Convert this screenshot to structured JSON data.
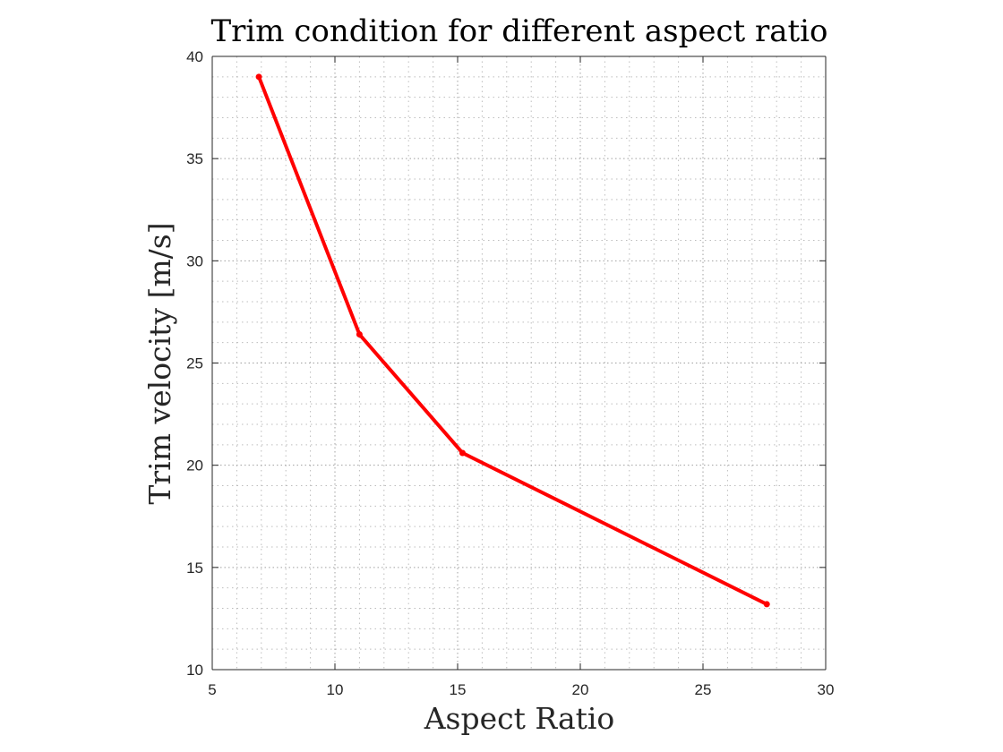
{
  "chart_data": {
    "type": "line",
    "title": "Trim condition for different aspect ratio",
    "xlabel": "Aspect Ratio",
    "ylabel": "Trim velocity [m/s]",
    "xlim": [
      5,
      30
    ],
    "ylim": [
      10,
      40
    ],
    "xticks": [
      5,
      10,
      15,
      20,
      25,
      30
    ],
    "yticks": [
      10,
      15,
      20,
      25,
      30,
      35,
      40
    ],
    "grid": "on (major and minor, dotted)",
    "color": "#ff0000",
    "series": [
      {
        "x": [
          6.9,
          11.0,
          15.2,
          27.6
        ],
        "y": [
          39.0,
          26.4,
          20.6,
          13.2
        ]
      }
    ]
  }
}
